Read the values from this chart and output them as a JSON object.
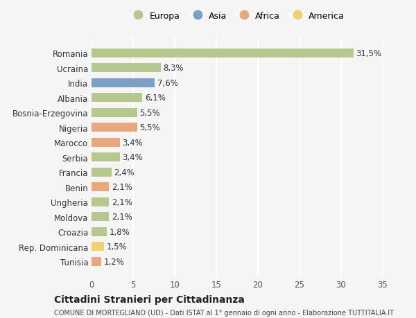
{
  "countries": [
    "Romania",
    "Ucraina",
    "India",
    "Albania",
    "Bosnia-Erzegovina",
    "Nigeria",
    "Marocco",
    "Serbia",
    "Francia",
    "Benin",
    "Ungheria",
    "Moldova",
    "Croazia",
    "Rep. Dominicana",
    "Tunisia"
  ],
  "values": [
    31.5,
    8.3,
    7.6,
    6.1,
    5.5,
    5.5,
    3.4,
    3.4,
    2.4,
    2.1,
    2.1,
    2.1,
    1.8,
    1.5,
    1.2
  ],
  "labels": [
    "31,5%",
    "8,3%",
    "7,6%",
    "6,1%",
    "5,5%",
    "5,5%",
    "3,4%",
    "3,4%",
    "2,4%",
    "2,1%",
    "2,1%",
    "2,1%",
    "1,8%",
    "1,5%",
    "1,2%"
  ],
  "continents": [
    "Europa",
    "Europa",
    "Asia",
    "Europa",
    "Europa",
    "Africa",
    "Africa",
    "Europa",
    "Europa",
    "Africa",
    "Europa",
    "Europa",
    "Europa",
    "America",
    "Africa"
  ],
  "colors": {
    "Europa": "#b5c98e",
    "Asia": "#7b9fc7",
    "Africa": "#e8a87c",
    "America": "#f0d070"
  },
  "legend_order": [
    "Europa",
    "Asia",
    "Africa",
    "America"
  ],
  "bg_color": "#f5f5f5",
  "grid_color": "#ffffff",
  "title": "Cittadini Stranieri per Cittadinanza",
  "subtitle": "COMUNE DI MORTEGLIANO (UD) - Dati ISTAT al 1° gennaio di ogni anno - Elaborazione TUTTITALIA.IT",
  "xlim": [
    0,
    35
  ],
  "xticks": [
    0,
    5,
    10,
    15,
    20,
    25,
    30,
    35
  ]
}
